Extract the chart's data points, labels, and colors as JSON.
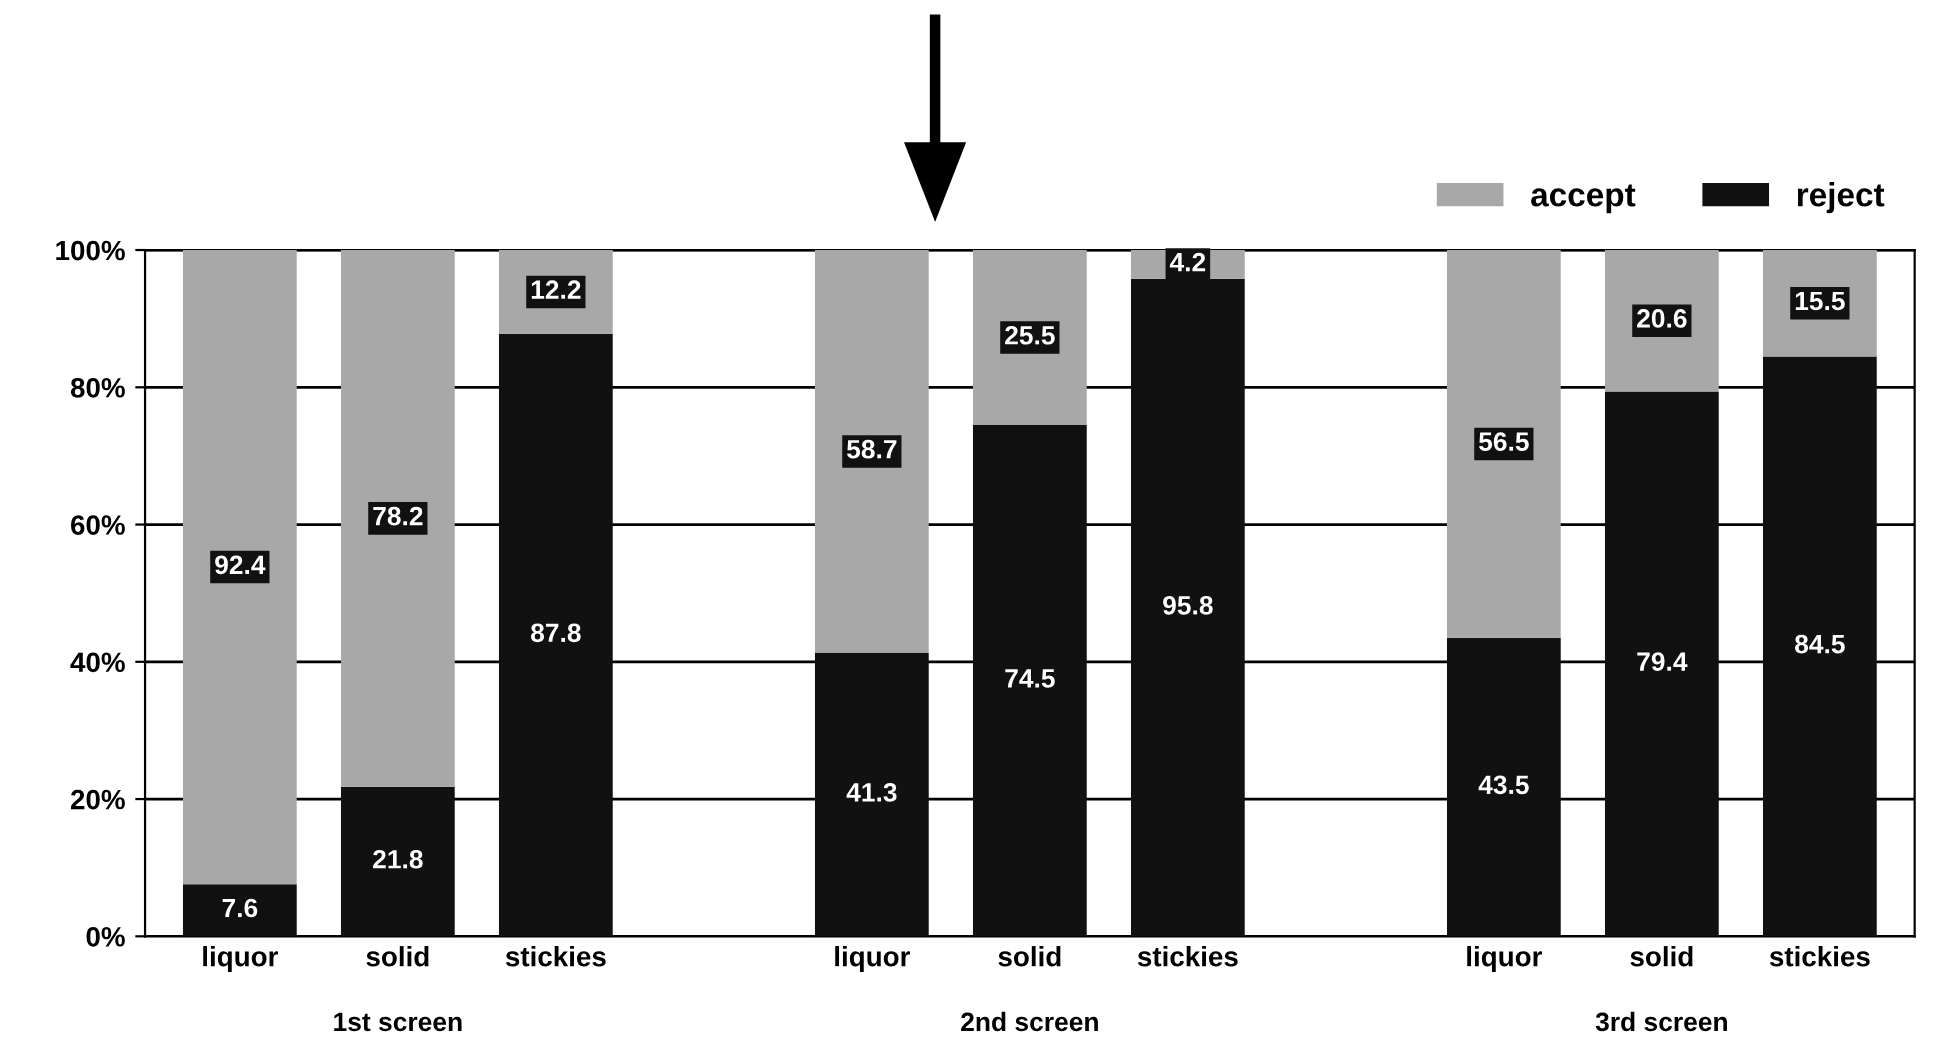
{
  "chart_data": {
    "type": "bar",
    "stacked": true,
    "categories": [
      "liquor",
      "solid",
      "stickies",
      null,
      "liquor",
      "solid",
      "stickies",
      null,
      "liquor",
      "solid",
      "stickies"
    ],
    "series": [
      {
        "name": "reject",
        "color": "#111111",
        "values": [
          7.6,
          21.8,
          87.8,
          null,
          41.3,
          74.5,
          95.8,
          null,
          43.5,
          79.4,
          84.5
        ]
      },
      {
        "name": "accept",
        "color": "#a8a8a8",
        "values": [
          92.4,
          78.2,
          12.2,
          null,
          58.7,
          25.5,
          4.2,
          null,
          56.5,
          20.6,
          15.5
        ]
      }
    ],
    "ylim": [
      0,
      100
    ],
    "yticks": [
      {
        "value": 0,
        "label": "0%"
      },
      {
        "value": 20,
        "label": "20%"
      },
      {
        "value": 40,
        "label": "40%"
      },
      {
        "value": 60,
        "label": "60%"
      },
      {
        "value": 80,
        "label": "80%"
      },
      {
        "value": 100,
        "label": "100%"
      }
    ],
    "grid": "y",
    "legend": "top right",
    "data_labels": true,
    "annotations": [
      "1st screen",
      "2nd screen",
      "3rd screen"
    ]
  }
}
